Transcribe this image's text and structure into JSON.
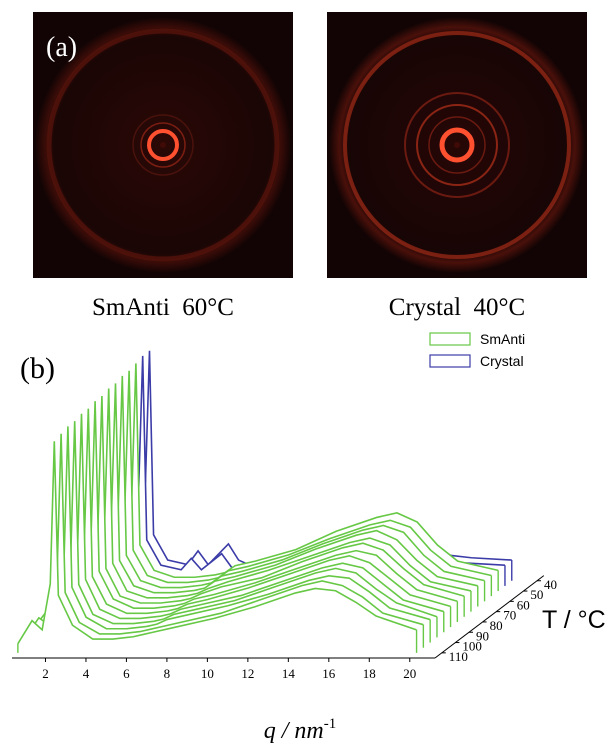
{
  "panels": {
    "a": {
      "label": "(a)",
      "images": [
        {
          "caption": "SmAnti  60°C"
        },
        {
          "caption": "Crystal  40°C"
        }
      ]
    }
  },
  "chart_data": {
    "type": "waterfall",
    "label": "(b)",
    "x_label": "q / nm",
    "x_label_sup": "-1",
    "z_label": "T / °C",
    "x": [
      0.3,
      1,
      1.5,
      1.9,
      2.1,
      2.3,
      3,
      4,
      4.5,
      5,
      6,
      6.5,
      7,
      8,
      10,
      12,
      14,
      15,
      16,
      17,
      18,
      20
    ],
    "xlim": [
      0,
      21
    ],
    "xticks": [
      2,
      4,
      6,
      8,
      10,
      12,
      14,
      16,
      18,
      20
    ],
    "zlim": [
      35,
      115
    ],
    "zticks": [
      40,
      50,
      60,
      70,
      80,
      90,
      100,
      110
    ],
    "series": [
      {
        "name": "SmAnti",
        "color": "#66c845",
        "z": [
          110,
          105,
          100,
          95,
          90,
          85,
          80,
          75,
          70,
          65,
          60,
          55,
          50
        ],
        "values": [
          [
            4,
            14,
            10,
            30,
            92,
            25,
            12,
            6,
            6,
            6,
            7,
            8,
            9,
            11,
            15,
            20,
            26,
            28,
            27,
            22,
            16,
            10
          ],
          [
            4,
            13,
            10,
            32,
            93,
            24,
            11,
            6,
            6,
            6,
            7,
            8,
            9,
            11,
            15,
            21,
            27,
            29,
            27,
            22,
            15,
            10
          ],
          [
            5,
            13,
            11,
            33,
            94,
            24,
            11,
            6,
            6,
            6,
            7,
            8,
            10,
            12,
            16,
            21,
            27,
            29,
            28,
            22,
            15,
            10
          ],
          [
            5,
            12,
            11,
            34,
            94,
            23,
            10,
            6,
            6,
            6,
            7,
            8,
            10,
            12,
            16,
            22,
            28,
            30,
            28,
            21,
            15,
            9
          ],
          [
            5,
            12,
            11,
            35,
            95,
            23,
            10,
            6,
            6,
            6,
            7,
            8,
            10,
            12,
            16,
            22,
            28,
            30,
            28,
            21,
            14,
            9
          ],
          [
            5,
            11,
            12,
            36,
            95,
            22,
            10,
            6,
            6,
            6,
            7,
            8,
            10,
            12,
            17,
            23,
            29,
            31,
            28,
            21,
            14,
            9
          ],
          [
            5,
            11,
            12,
            37,
            96,
            22,
            10,
            6,
            6,
            6,
            7,
            8,
            10,
            12,
            17,
            23,
            29,
            31,
            29,
            21,
            14,
            9
          ],
          [
            6,
            10,
            12,
            38,
            96,
            21,
            9,
            6,
            6,
            6,
            7,
            8,
            10,
            13,
            17,
            24,
            30,
            32,
            29,
            21,
            14,
            9
          ],
          [
            6,
            10,
            13,
            39,
            97,
            21,
            9,
            6,
            6,
            6,
            7,
            8,
            10,
            13,
            18,
            24,
            30,
            32,
            29,
            20,
            13,
            9
          ],
          [
            6,
            10,
            13,
            40,
            97,
            20,
            9,
            6,
            6,
            6,
            7,
            8,
            11,
            13,
            18,
            25,
            31,
            33,
            29,
            20,
            13,
            9
          ],
          [
            6,
            9,
            13,
            41,
            98,
            20,
            9,
            6,
            6,
            6,
            7,
            8,
            11,
            13,
            18,
            25,
            31,
            33,
            30,
            20,
            13,
            9
          ],
          [
            6,
            9,
            14,
            42,
            98,
            20,
            9,
            6,
            6,
            6,
            7,
            8,
            11,
            13,
            18,
            25,
            31,
            33,
            30,
            20,
            13,
            9
          ],
          [
            6,
            9,
            14,
            42,
            99,
            20,
            9,
            6,
            6,
            6,
            7,
            8,
            11,
            13,
            18,
            26,
            32,
            34,
            30,
            20,
            13,
            9
          ]
        ]
      },
      {
        "name": "Crystal",
        "color": "#3c3ca8",
        "z": [
          45,
          40
        ],
        "values": [
          [
            6,
            9,
            14,
            42,
            100,
            20,
            9,
            7,
            12,
            7,
            14,
            8,
            7,
            8,
            9,
            10,
            12,
            20,
            14,
            11,
            10,
            9
          ],
          [
            6,
            9,
            14,
            43,
            100,
            20,
            9,
            7,
            13,
            7,
            16,
            9,
            7,
            8,
            9,
            10,
            13,
            22,
            15,
            11,
            10,
            9
          ]
        ]
      }
    ]
  }
}
